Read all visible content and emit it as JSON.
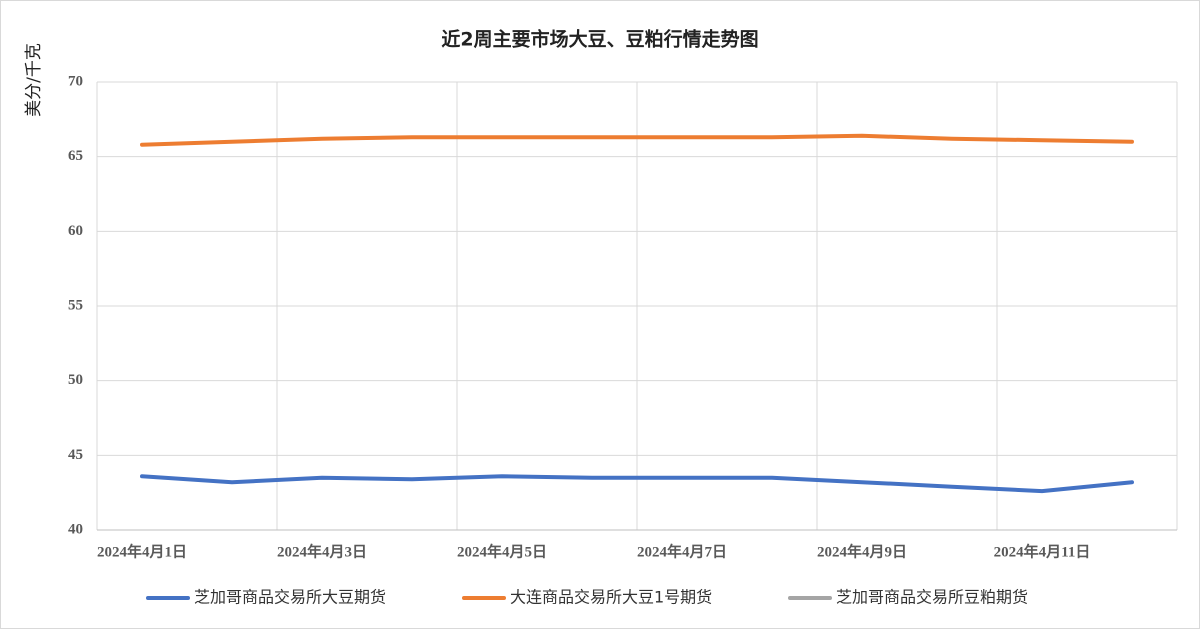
{
  "chart_data": {
    "type": "line",
    "title": "近2周主要市场大豆、豆粕行情走势图",
    "y_label": "美分/千克",
    "categories": [
      "2024年4月1日",
      null,
      "2024年4月3日",
      null,
      "2024年4月5日",
      null,
      "2024年4月7日",
      null,
      "2024年4月9日",
      null,
      "2024年4月11日",
      null
    ],
    "series": [
      {
        "name": "芝加哥商品交易所大豆期货",
        "color": "#4472c4",
        "values": [
          43.6,
          43.2,
          43.5,
          43.4,
          43.6,
          43.5,
          43.5,
          43.5,
          43.2,
          42.9,
          42.6,
          43.2
        ]
      },
      {
        "name": "大连商品交易所大豆1号期货",
        "color": "#ed7d31",
        "values": [
          65.8,
          66.0,
          66.2,
          66.3,
          66.3,
          66.3,
          66.3,
          66.3,
          66.4,
          66.2,
          66.1,
          66.0
        ]
      },
      {
        "name": "芝加哥商品交易所豆粕期货",
        "color": "#a5a5a5",
        "values": [
          null,
          null,
          null,
          null,
          null,
          null,
          null,
          null,
          null,
          null,
          null,
          null
        ]
      }
    ],
    "ylim": [
      40,
      70
    ],
    "yticks": [
      40,
      45,
      50,
      55,
      60,
      65,
      70
    ],
    "grid": true,
    "legend": "bottom"
  }
}
